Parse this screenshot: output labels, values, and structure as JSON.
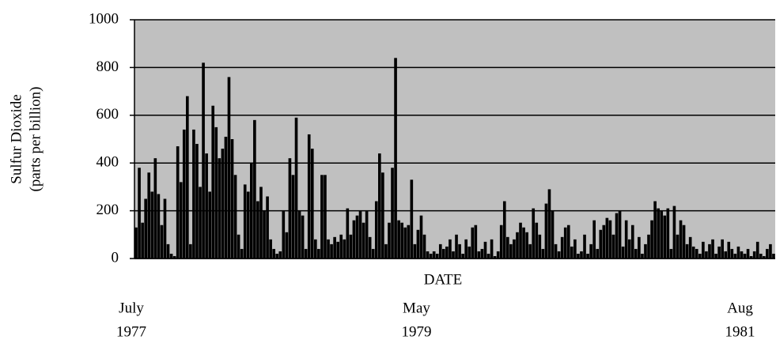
{
  "chart_data": {
    "type": "bar",
    "y_label": [
      "Sulfur Dioxide",
      "(parts per billion)"
    ],
    "x_label": "DATE",
    "color": "#000000",
    "plot_background": "#c0c0c0",
    "grid": true,
    "ylim": [
      0,
      1000
    ],
    "yticks": [
      0,
      200,
      400,
      600,
      800,
      1000
    ],
    "categories": [
      [
        "July",
        "1977"
      ],
      null,
      null,
      null,
      null,
      null,
      null,
      null,
      null,
      null,
      null,
      null,
      null,
      null,
      null,
      null,
      null,
      null,
      null,
      null,
      null,
      null,
      null,
      null,
      null,
      null,
      null,
      null,
      null,
      null,
      null,
      null,
      null,
      null,
      null,
      null,
      null,
      null,
      null,
      null,
      null,
      null,
      null,
      null,
      null,
      null,
      null,
      null,
      null,
      null,
      null,
      null,
      null,
      null,
      null,
      null,
      null,
      null,
      null,
      null,
      null,
      null,
      null,
      null,
      null,
      null,
      null,
      null,
      null,
      null,
      null,
      null,
      null,
      null,
      null,
      null,
      null,
      null,
      null,
      null,
      null,
      null,
      null,
      null,
      null,
      null,
      null,
      null,
      null,
      [
        "May",
        "1979"
      ],
      null,
      null,
      null,
      null,
      null,
      null,
      null,
      null,
      null,
      null,
      null,
      null,
      null,
      null,
      null,
      null,
      null,
      null,
      null,
      null,
      null,
      null,
      null,
      null,
      null,
      null,
      null,
      null,
      null,
      null,
      null,
      null,
      null,
      null,
      null,
      null,
      null,
      null,
      null,
      null,
      null,
      null,
      null,
      null,
      null,
      null,
      null,
      null,
      null,
      null,
      null,
      null,
      null,
      null,
      null,
      null,
      null,
      null,
      null,
      null,
      null,
      null,
      null,
      null,
      null,
      null,
      null,
      null,
      null,
      null,
      null,
      null,
      null,
      null,
      null,
      null,
      null,
      null,
      null,
      null,
      null,
      null,
      null,
      null,
      null,
      null,
      null,
      null,
      null,
      null,
      null,
      null,
      null,
      null,
      null,
      null,
      null,
      null,
      null,
      null,
      [
        "Aug",
        "1981"
      ],
      null,
      null,
      null,
      null,
      null,
      null,
      null,
      null,
      null
    ],
    "values": [
      130,
      380,
      150,
      250,
      360,
      280,
      420,
      270,
      140,
      250,
      60,
      20,
      10,
      470,
      320,
      540,
      680,
      60,
      540,
      480,
      300,
      820,
      440,
      280,
      640,
      550,
      420,
      460,
      510,
      760,
      500,
      350,
      100,
      40,
      310,
      280,
      400,
      580,
      240,
      300,
      200,
      260,
      80,
      40,
      20,
      30,
      200,
      110,
      420,
      350,
      590,
      200,
      180,
      40,
      520,
      460,
      80,
      40,
      350,
      350,
      80,
      60,
      90,
      70,
      100,
      80,
      210,
      100,
      160,
      180,
      200,
      150,
      200,
      90,
      40,
      240,
      440,
      360,
      60,
      150,
      380,
      840,
      160,
      150,
      130,
      140,
      330,
      60,
      120,
      180,
      100,
      30,
      20,
      30,
      20,
      60,
      40,
      50,
      80,
      30,
      100,
      60,
      20,
      80,
      50,
      130,
      140,
      30,
      40,
      70,
      20,
      80,
      10,
      30,
      140,
      240,
      90,
      60,
      80,
      110,
      150,
      130,
      110,
      60,
      210,
      150,
      100,
      40,
      230,
      290,
      200,
      60,
      30,
      90,
      130,
      140,
      50,
      80,
      20,
      30,
      100,
      20,
      60,
      160,
      40,
      120,
      140,
      170,
      160,
      100,
      190,
      200,
      50,
      160,
      80,
      140,
      40,
      90,
      20,
      60,
      100,
      160,
      240,
      210,
      200,
      180,
      210,
      40,
      220,
      100,
      160,
      140,
      60,
      90,
      50,
      40,
      20,
      70,
      30,
      60,
      80,
      20,
      50,
      80,
      30,
      70,
      40,
      20,
      50,
      30,
      20,
      40,
      10,
      30,
      70,
      20,
      10,
      40,
      60,
      20
    ]
  }
}
